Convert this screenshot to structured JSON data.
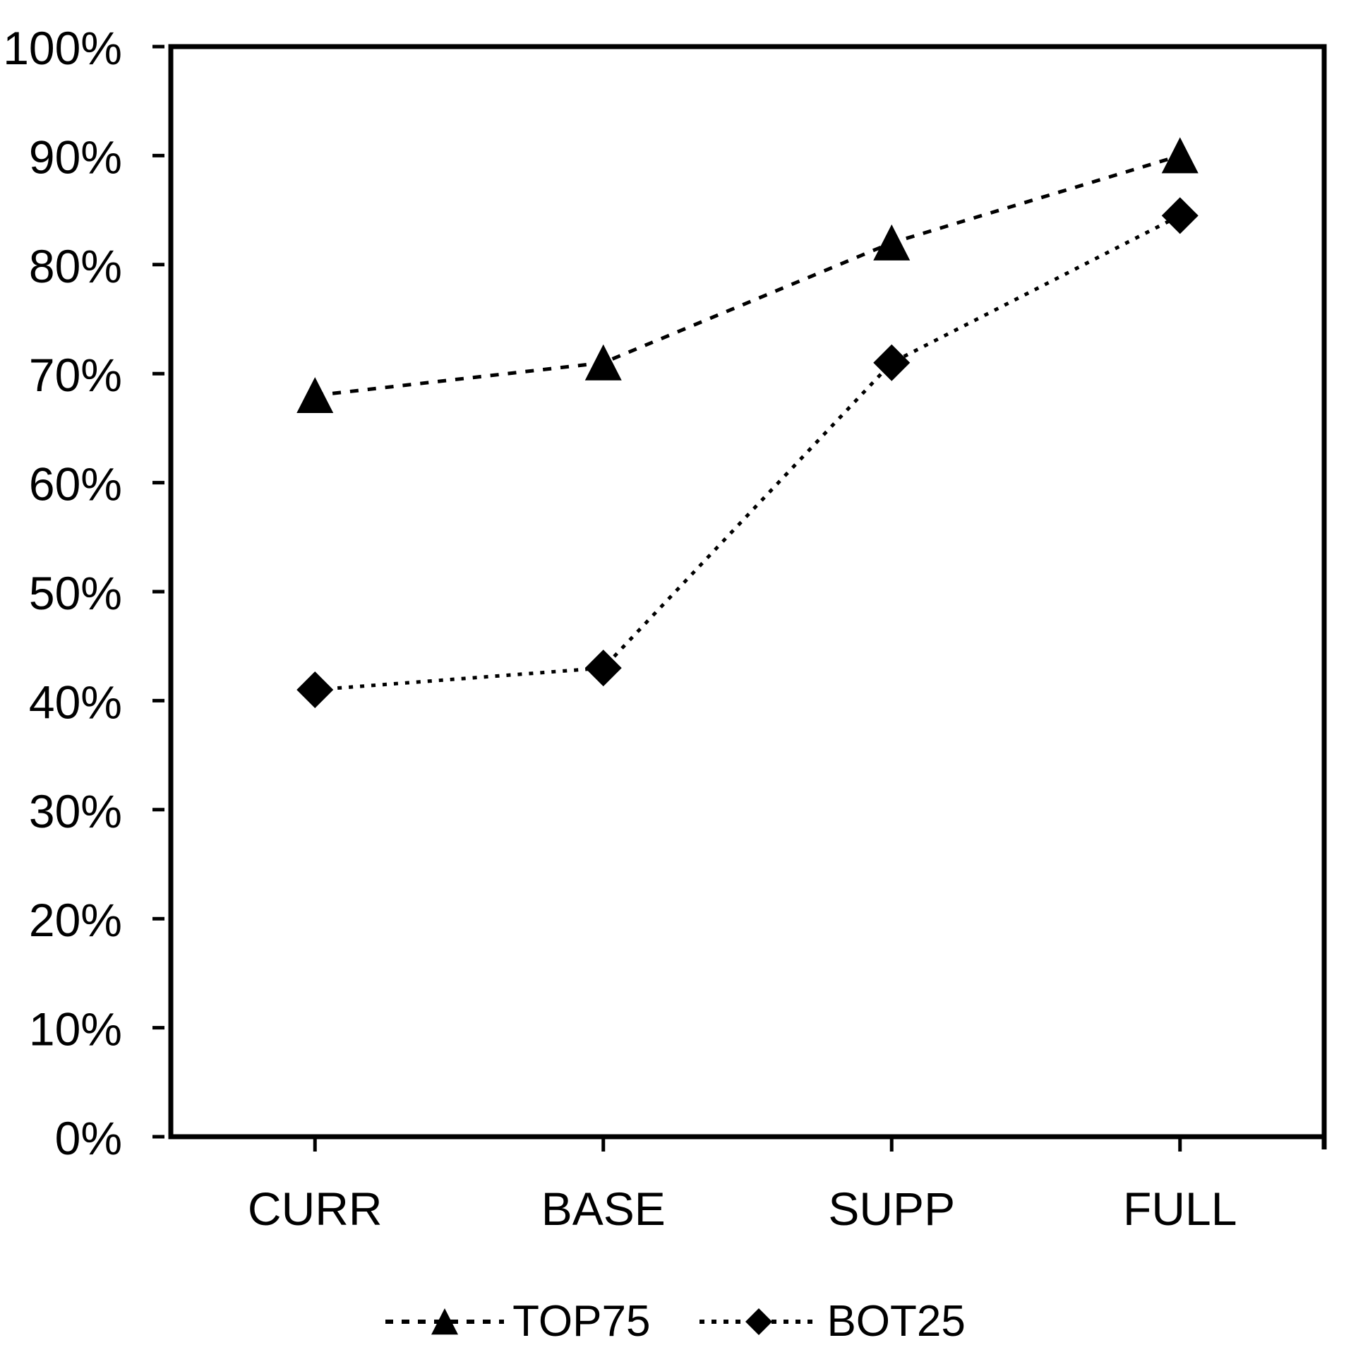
{
  "chart_data": {
    "type": "line",
    "title": "",
    "xlabel": "",
    "ylabel": "",
    "categories": [
      "CURR",
      "BASE",
      "SUPP",
      "FULL"
    ],
    "series": [
      {
        "name": "TOP75",
        "values": [
          68,
          71,
          82,
          90
        ],
        "marker": "triangle",
        "line_style": "dashed",
        "color": "#000000"
      },
      {
        "name": "BOT25",
        "values": [
          41,
          43,
          71,
          84.5
        ],
        "marker": "diamond",
        "line_style": "dotted",
        "color": "#000000"
      }
    ],
    "ylim": [
      0,
      100
    ],
    "y_tick_step": 10,
    "y_tick_labels": [
      "0%",
      "10%",
      "20%",
      "30%",
      "40%",
      "50%",
      "60%",
      "70%",
      "80%",
      "90%",
      "100%"
    ],
    "y_unit": "%",
    "grid": "off",
    "legend_position": "bottom",
    "axis_color": "#000000",
    "background_color": "#ffffff"
  }
}
